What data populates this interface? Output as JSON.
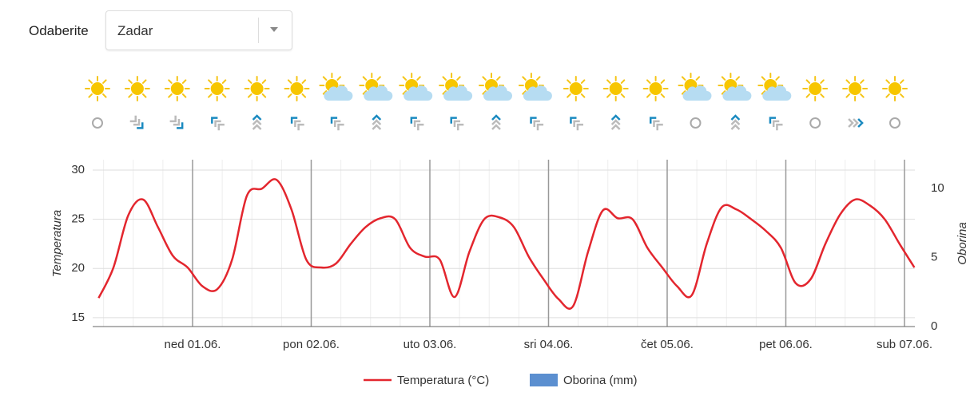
{
  "selector": {
    "label": "Odaberite",
    "value": "Zadar"
  },
  "chart_data": {
    "type": "line",
    "y_label": "Temperatura",
    "y2_label": "Oborina",
    "x": [
      -19,
      -16,
      -13,
      -10,
      -7,
      -4,
      -1,
      2,
      5,
      8,
      11,
      14,
      17,
      20,
      23,
      26,
      29,
      32,
      35,
      38,
      41,
      44,
      47,
      50,
      53,
      56,
      59,
      62,
      65,
      68,
      71,
      74,
      77,
      80,
      83,
      86,
      89,
      92,
      95,
      98,
      101,
      104,
      107,
      110,
      113,
      116,
      119,
      122,
      125,
      128,
      131,
      134,
      137,
      140,
      143,
      146
    ],
    "series": [
      {
        "name": "Temperatura (°C)",
        "color": "#e3262e",
        "values": [
          17.0,
          20.1,
          25.4,
          27.0,
          24.2,
          21.3,
          20.1,
          18.2,
          17.9,
          20.9,
          27.4,
          28.1,
          29.0,
          26.0,
          20.9,
          20.1,
          20.5,
          22.5,
          24.2,
          25.1,
          25.0,
          22.1,
          21.2,
          20.9,
          17.1,
          21.7,
          25.0,
          25.2,
          24.2,
          21.2,
          18.9,
          16.9,
          16.2,
          21.7,
          25.9,
          25.1,
          25.0,
          22.1,
          20.1,
          18.2,
          17.3,
          22.5,
          26.2,
          26.0,
          25.0,
          23.8,
          22.1,
          18.5,
          18.9,
          22.5,
          25.5,
          27.0,
          26.4,
          25.0,
          22.5,
          20.1
        ]
      },
      {
        "name": "Oborina (mm)",
        "color": "#5b8fd0",
        "axis": "y2",
        "values": [
          0,
          0,
          0,
          0,
          0,
          0,
          0,
          0,
          0,
          0,
          0,
          0,
          0,
          0,
          0,
          0,
          0,
          0,
          0,
          0,
          0,
          0,
          0,
          0,
          0,
          0,
          0,
          0,
          0,
          0,
          0,
          0,
          0,
          0,
          0,
          0,
          0,
          0,
          0,
          0,
          0,
          0,
          0,
          0,
          0,
          0,
          0,
          0,
          0,
          0,
          0,
          0,
          0,
          0,
          0,
          0
        ]
      }
    ],
    "xlim": [
      -20.2,
      146.1
    ],
    "xticks": [
      {
        "value": 0,
        "label": "ned 01.06."
      },
      {
        "value": 24,
        "label": "pon 02.06."
      },
      {
        "value": 48,
        "label": "uto 03.06."
      },
      {
        "value": 72,
        "label": "sri 04.06."
      },
      {
        "value": 96,
        "label": "čet 05.06."
      },
      {
        "value": 120,
        "label": "pet 06.06."
      },
      {
        "value": 144,
        "label": "sub 07.06."
      }
    ],
    "ylim": [
      14.1,
      31.05
    ],
    "yticks": [
      15,
      20,
      25,
      30
    ],
    "y2lim": [
      0,
      12.08
    ],
    "y2ticks": [
      0,
      5,
      10
    ],
    "grid": true
  }
}
